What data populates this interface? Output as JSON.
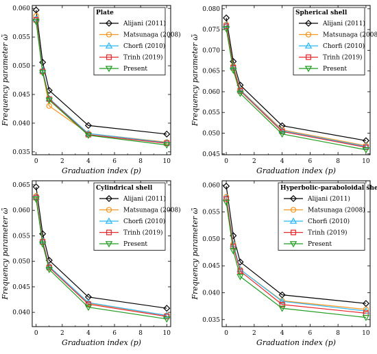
{
  "chart_data": [
    {
      "type": "line",
      "title": "Plate",
      "xlabel": "Graduation index (p)",
      "ylabel": "Frequency parameter ω̃",
      "x": [
        0,
        0.5,
        1,
        4,
        10
      ],
      "xlim": [
        -0.3,
        10.3
      ],
      "ylim": [
        0.0345,
        0.0605
      ],
      "xticks": [
        0,
        2,
        4,
        6,
        8,
        10
      ],
      "yticks": [
        0.035,
        0.04,
        0.045,
        0.05,
        0.055,
        0.06
      ],
      "ytick_labels": [
        "0.035",
        "0.040",
        "0.045",
        "0.050",
        "0.055",
        "0.060"
      ],
      "series": [
        {
          "name": "Alijani (2011)",
          "values": [
            0.0597,
            0.0506,
            0.0457,
            0.0396,
            0.0381
          ]
        },
        {
          "name": "Matsunaga (2008)",
          "values": [
            0.0587,
            0.049,
            0.043,
            0.0382,
            0.0367
          ]
        },
        {
          "name": "Chorfi (2010)",
          "values": [
            0.0582,
            0.0492,
            0.0443,
            0.0382,
            0.0366
          ]
        },
        {
          "name": "Trinh (2019)",
          "values": [
            0.058,
            0.049,
            0.0442,
            0.038,
            0.0365
          ]
        },
        {
          "name": "Present",
          "values": [
            0.0577,
            0.0488,
            0.044,
            0.0379,
            0.0362
          ]
        }
      ]
    },
    {
      "type": "line",
      "title": "Spherical shell",
      "xlabel": "Graduation index (p)",
      "ylabel": "Frequency parameter ω̃",
      "x": [
        0,
        0.5,
        1,
        4,
        10
      ],
      "xlim": [
        -0.3,
        10.3
      ],
      "ylim": [
        0.0448,
        0.0808
      ],
      "xticks": [
        0,
        2,
        4,
        6,
        8,
        10
      ],
      "yticks": [
        0.045,
        0.05,
        0.055,
        0.06,
        0.065,
        0.07,
        0.075,
        0.08
      ],
      "ytick_labels": [
        "0.045",
        "0.050",
        "0.055",
        "0.060",
        "0.065",
        "0.070",
        "0.075",
        "0.080"
      ],
      "series": [
        {
          "name": "Alijani (2011)",
          "values": [
            0.0778,
            0.0673,
            0.0616,
            0.0518,
            0.0482
          ]
        },
        {
          "name": "Matsunaga (2008)",
          "values": [
            0.0762,
            0.0662,
            0.0605,
            0.0508,
            0.047
          ]
        },
        {
          "name": "Chorfi (2010)",
          "values": [
            0.076,
            0.066,
            0.0604,
            0.0506,
            0.0468
          ]
        },
        {
          "name": "Trinh (2019)",
          "values": [
            0.0758,
            0.0658,
            0.0602,
            0.0504,
            0.0466
          ]
        },
        {
          "name": "Present",
          "values": [
            0.0752,
            0.0652,
            0.0596,
            0.0498,
            0.046
          ]
        }
      ]
    },
    {
      "type": "line",
      "title": "Cylindrical shell",
      "xlabel": "Graduation index (p)",
      "ylabel": "Frequency parameter ω̃",
      "x": [
        0,
        0.5,
        1,
        4,
        10
      ],
      "xlim": [
        -0.3,
        10.3
      ],
      "ylim": [
        0.0372,
        0.0658
      ],
      "xticks": [
        0,
        2,
        4,
        6,
        8,
        10
      ],
      "yticks": [
        0.04,
        0.045,
        0.05,
        0.055,
        0.06,
        0.065
      ],
      "ytick_labels": [
        "0.040",
        "0.045",
        "0.050",
        "0.055",
        "0.060",
        "0.065"
      ],
      "series": [
        {
          "name": "Alijani (2011)",
          "values": [
            0.0646,
            0.0554,
            0.0502,
            0.043,
            0.0408
          ]
        },
        {
          "name": "Matsunaga (2008)",
          "values": [
            0.0628,
            0.054,
            0.049,
            0.0418,
            0.0394
          ]
        },
        {
          "name": "Chorfi (2010)",
          "values": [
            0.0626,
            0.054,
            0.049,
            0.0419,
            0.0394
          ]
        },
        {
          "name": "Trinh (2019)",
          "values": [
            0.0625,
            0.0538,
            0.0488,
            0.0416,
            0.0392
          ]
        },
        {
          "name": "Present",
          "values": [
            0.0622,
            0.0534,
            0.0484,
            0.041,
            0.0387
          ]
        }
      ]
    },
    {
      "type": "line",
      "title": "Hyperbolic-paraboloidal shell",
      "xlabel": "Graduation index (p)",
      "ylabel": "Frequency parameter ω̃",
      "x": [
        0,
        0.5,
        1,
        4,
        10
      ],
      "xlim": [
        -0.3,
        10.3
      ],
      "ylim": [
        0.0337,
        0.0608
      ],
      "xticks": [
        0,
        2,
        4,
        6,
        8,
        10
      ],
      "yticks": [
        0.035,
        0.04,
        0.045,
        0.05,
        0.055,
        0.06
      ],
      "ytick_labels": [
        "0.035",
        "0.040",
        "0.045",
        "0.050",
        "0.055",
        "0.060"
      ],
      "series": [
        {
          "name": "Alijani (2011)",
          "values": [
            0.0598,
            0.0506,
            0.0457,
            0.0396,
            0.038
          ]
        },
        {
          "name": "Matsunaga (2008)",
          "values": [
            0.0578,
            0.049,
            0.0443,
            0.0385,
            0.0369
          ]
        },
        {
          "name": "Chorfi (2010)",
          "values": [
            0.0576,
            0.049,
            0.0443,
            0.0384,
            0.0366
          ]
        },
        {
          "name": "Trinh (2019)",
          "values": [
            0.0574,
            0.0486,
            0.044,
            0.0378,
            0.0362
          ]
        },
        {
          "name": "Present",
          "values": [
            0.0568,
            0.0478,
            0.043,
            0.0371,
            0.0354
          ]
        }
      ]
    }
  ],
  "style": {
    "series_colors": [
      "#000000",
      "#f7941d",
      "#29b6f6",
      "#e8262b",
      "#1f9b1f"
    ],
    "series_markers": [
      "diamond",
      "circle",
      "triangle-up",
      "square",
      "triangle-down"
    ]
  }
}
